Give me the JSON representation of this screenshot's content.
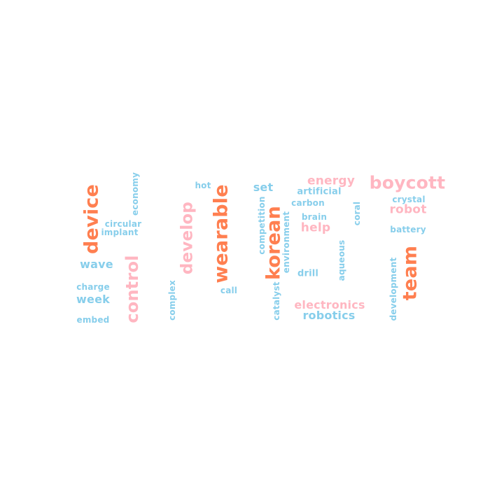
{
  "palette": {
    "orange": "#ff7f50",
    "pink": "#ffb6c1",
    "blue": "#87ceeb",
    "background": "#ffffff"
  },
  "words": [
    {
      "id": "boycott",
      "text": "boycott",
      "color": "pink"
    },
    {
      "id": "energy",
      "text": "energy",
      "color": "pink"
    },
    {
      "id": "crystal",
      "text": "crystal",
      "color": "blue"
    },
    {
      "id": "artificial",
      "text": "artificial",
      "color": "blue"
    },
    {
      "id": "robot",
      "text": "robot",
      "color": "pink"
    },
    {
      "id": "carbon",
      "text": "carbon",
      "color": "blue"
    },
    {
      "id": "coral",
      "text": "coral",
      "color": "blue"
    },
    {
      "id": "brain",
      "text": "brain",
      "color": "blue"
    },
    {
      "id": "help",
      "text": "help",
      "color": "pink"
    },
    {
      "id": "battery",
      "text": "battery",
      "color": "blue"
    },
    {
      "id": "set",
      "text": "set",
      "color": "blue"
    },
    {
      "id": "hot",
      "text": "hot",
      "color": "blue"
    },
    {
      "id": "economy",
      "text": "economy",
      "color": "blue"
    },
    {
      "id": "device",
      "text": "device",
      "color": "orange"
    },
    {
      "id": "circular",
      "text": "circular",
      "color": "blue"
    },
    {
      "id": "implant",
      "text": "implant",
      "color": "blue"
    },
    {
      "id": "develop",
      "text": "develop",
      "color": "pink"
    },
    {
      "id": "wearable",
      "text": "wearable",
      "color": "orange"
    },
    {
      "id": "competition",
      "text": "competition",
      "color": "blue"
    },
    {
      "id": "korean",
      "text": "korean",
      "color": "orange"
    },
    {
      "id": "environment",
      "text": "environment",
      "color": "blue"
    },
    {
      "id": "aqueous",
      "text": "aqueous",
      "color": "blue"
    },
    {
      "id": "team",
      "text": "team",
      "color": "orange"
    },
    {
      "id": "development",
      "text": "development",
      "color": "blue"
    },
    {
      "id": "wave",
      "text": "wave",
      "color": "blue"
    },
    {
      "id": "control",
      "text": "control",
      "color": "pink"
    },
    {
      "id": "drill",
      "text": "drill",
      "color": "blue"
    },
    {
      "id": "charge",
      "text": "charge",
      "color": "blue"
    },
    {
      "id": "call",
      "text": "call",
      "color": "blue"
    },
    {
      "id": "catalyst",
      "text": "catalyst",
      "color": "blue"
    },
    {
      "id": "week",
      "text": "week",
      "color": "blue"
    },
    {
      "id": "complex",
      "text": "complex",
      "color": "blue"
    },
    {
      "id": "electronics",
      "text": "electronics",
      "color": "pink"
    },
    {
      "id": "robotics",
      "text": "robotics",
      "color": "blue"
    },
    {
      "id": "embed",
      "text": "embed",
      "color": "blue"
    }
  ]
}
